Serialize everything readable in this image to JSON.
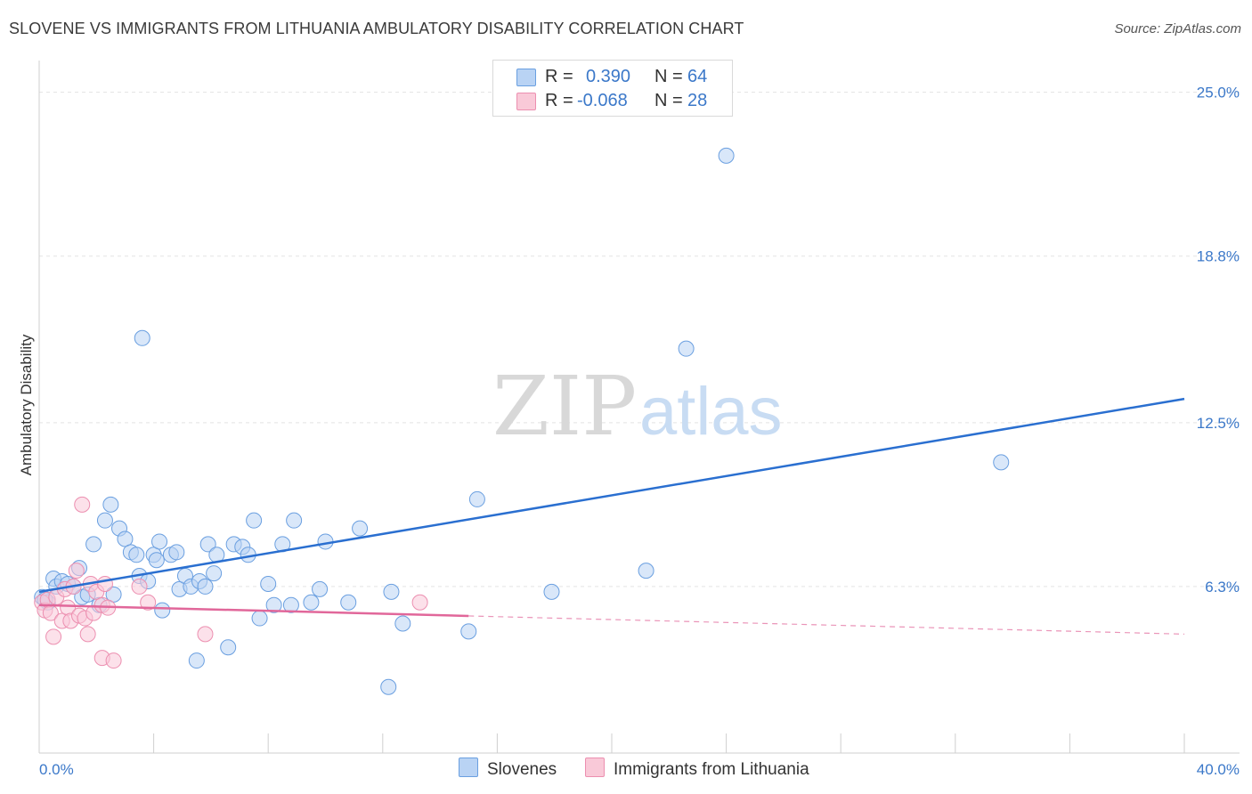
{
  "title": "SLOVENE VS IMMIGRANTS FROM LITHUANIA AMBULATORY DISABILITY CORRELATION CHART",
  "source": "Source: ZipAtlas.com",
  "watermark": {
    "zip": "ZIP",
    "atlas": "atlas"
  },
  "legend": {
    "rows": [
      {
        "r_label": "R =",
        "r_value": "0.390",
        "n_label": "N =",
        "n_value": "64",
        "color": "#b9d3f4",
        "border": "#6a9fe0"
      },
      {
        "r_label": "R =",
        "r_value": "-0.068",
        "n_label": "N =",
        "n_value": "28",
        "color": "#f9c9d8",
        "border": "#ec8fb0"
      }
    ]
  },
  "bottom_legend": [
    {
      "label": "Slovenes",
      "color": "#b9d3f4",
      "border": "#6a9fe0"
    },
    {
      "label": "Immigrants from Lithuania",
      "color": "#f9c9d8",
      "border": "#ec8fb0"
    }
  ],
  "chart_data": {
    "type": "scatter",
    "ylabel": "Ambulatory Disability",
    "xlim": [
      0,
      40
    ],
    "ylim": [
      0,
      26.2
    ],
    "x_tick_labels": [
      "0.0%",
      "40.0%"
    ],
    "y_ticks": [
      6.3,
      12.5,
      18.8,
      25.0
    ],
    "y_tick_labels": [
      "6.3%",
      "12.5%",
      "18.8%",
      "25.0%"
    ],
    "grid": "horizontal dashed",
    "series": [
      {
        "name": "Slovenes",
        "color": "#6a9fe0",
        "fill": "#b9d3f4",
        "trend": {
          "x": [
            0,
            40
          ],
          "y": [
            6.1,
            13.4
          ],
          "solid_to": 40
        },
        "points": [
          [
            0.1,
            5.9
          ],
          [
            0.3,
            5.7
          ],
          [
            0.5,
            6.6
          ],
          [
            0.6,
            6.3
          ],
          [
            0.8,
            6.5
          ],
          [
            1.0,
            6.4
          ],
          [
            1.2,
            6.3
          ],
          [
            1.4,
            7.0
          ],
          [
            1.5,
            5.9
          ],
          [
            1.7,
            6.0
          ],
          [
            1.9,
            7.9
          ],
          [
            2.1,
            5.6
          ],
          [
            2.3,
            8.8
          ],
          [
            2.5,
            9.4
          ],
          [
            2.6,
            6.0
          ],
          [
            2.8,
            8.5
          ],
          [
            3.0,
            8.1
          ],
          [
            3.2,
            7.6
          ],
          [
            3.4,
            7.5
          ],
          [
            3.5,
            6.7
          ],
          [
            3.6,
            15.7
          ],
          [
            3.8,
            6.5
          ],
          [
            4.0,
            7.5
          ],
          [
            4.1,
            7.3
          ],
          [
            4.2,
            8.0
          ],
          [
            4.3,
            5.4
          ],
          [
            4.6,
            7.5
          ],
          [
            4.8,
            7.6
          ],
          [
            4.9,
            6.2
          ],
          [
            5.1,
            6.7
          ],
          [
            5.3,
            6.3
          ],
          [
            5.5,
            3.5
          ],
          [
            5.6,
            6.5
          ],
          [
            5.8,
            6.3
          ],
          [
            5.9,
            7.9
          ],
          [
            6.1,
            6.8
          ],
          [
            6.2,
            7.5
          ],
          [
            6.6,
            4.0
          ],
          [
            6.8,
            7.9
          ],
          [
            7.1,
            7.8
          ],
          [
            7.3,
            7.5
          ],
          [
            7.5,
            8.8
          ],
          [
            7.7,
            5.1
          ],
          [
            8.0,
            6.4
          ],
          [
            8.2,
            5.6
          ],
          [
            8.5,
            7.9
          ],
          [
            8.8,
            5.6
          ],
          [
            8.9,
            8.8
          ],
          [
            9.5,
            5.7
          ],
          [
            9.8,
            6.2
          ],
          [
            10.0,
            8.0
          ],
          [
            10.8,
            5.7
          ],
          [
            11.2,
            8.5
          ],
          [
            12.2,
            2.5
          ],
          [
            12.3,
            6.1
          ],
          [
            12.7,
            4.9
          ],
          [
            15.0,
            4.6
          ],
          [
            15.3,
            9.6
          ],
          [
            17.9,
            6.1
          ],
          [
            21.2,
            6.9
          ],
          [
            22.6,
            15.3
          ],
          [
            24.0,
            22.6
          ],
          [
            33.6,
            11.0
          ],
          [
            0.2,
            5.8
          ]
        ]
      },
      {
        "name": "Immigrants from Lithuania",
        "color": "#ec8fb0",
        "fill": "#f9c9d8",
        "trend": {
          "x": [
            0,
            40
          ],
          "y": [
            5.6,
            4.5
          ],
          "solid_to": 15
        },
        "points": [
          [
            0.1,
            5.7
          ],
          [
            0.2,
            5.4
          ],
          [
            0.3,
            5.8
          ],
          [
            0.4,
            5.3
          ],
          [
            0.5,
            4.4
          ],
          [
            0.6,
            5.9
          ],
          [
            0.8,
            5.0
          ],
          [
            0.9,
            6.2
          ],
          [
            1.0,
            5.5
          ],
          [
            1.1,
            5.0
          ],
          [
            1.2,
            6.3
          ],
          [
            1.3,
            6.9
          ],
          [
            1.4,
            5.2
          ],
          [
            1.5,
            9.4
          ],
          [
            1.6,
            5.1
          ],
          [
            1.7,
            4.5
          ],
          [
            1.8,
            6.4
          ],
          [
            1.9,
            5.3
          ],
          [
            2.0,
            6.1
          ],
          [
            2.2,
            5.6
          ],
          [
            2.3,
            6.4
          ],
          [
            2.2,
            3.6
          ],
          [
            2.4,
            5.5
          ],
          [
            2.6,
            3.5
          ],
          [
            3.5,
            6.3
          ],
          [
            3.8,
            5.7
          ],
          [
            5.8,
            4.5
          ],
          [
            13.3,
            5.7
          ]
        ]
      }
    ]
  }
}
